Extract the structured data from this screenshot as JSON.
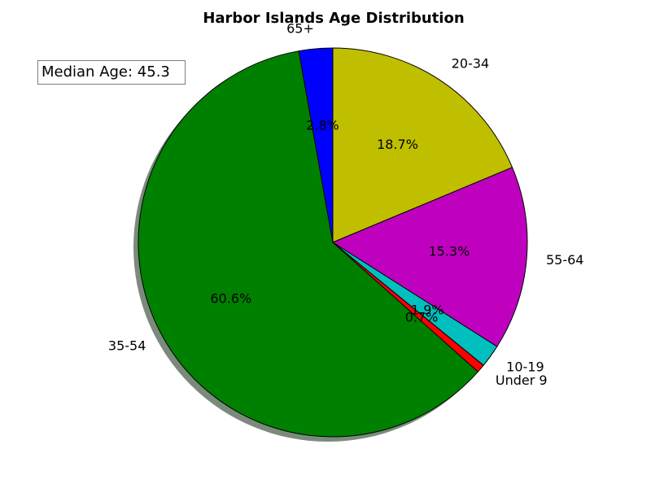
{
  "chart_data": {
    "type": "pie",
    "title": "Harbor Islands Age Distribution",
    "slices": [
      {
        "label": "20-34",
        "value": 18.7,
        "color": "#bfbf00"
      },
      {
        "label": "55-64",
        "value": 15.3,
        "color": "#bf00bf"
      },
      {
        "label": "10-19",
        "value": 1.9,
        "color": "#00bfbf"
      },
      {
        "label": "Under 9",
        "value": 0.7,
        "color": "#ff0000"
      },
      {
        "label": "35-54",
        "value": 60.6,
        "color": "#008000"
      },
      {
        "label": "65+",
        "value": 2.8,
        "color": "#0000ff"
      }
    ],
    "start_angle_deg": 90,
    "direction": "clockwise",
    "shadow": true,
    "annotation": "Median Age: 45.3"
  }
}
